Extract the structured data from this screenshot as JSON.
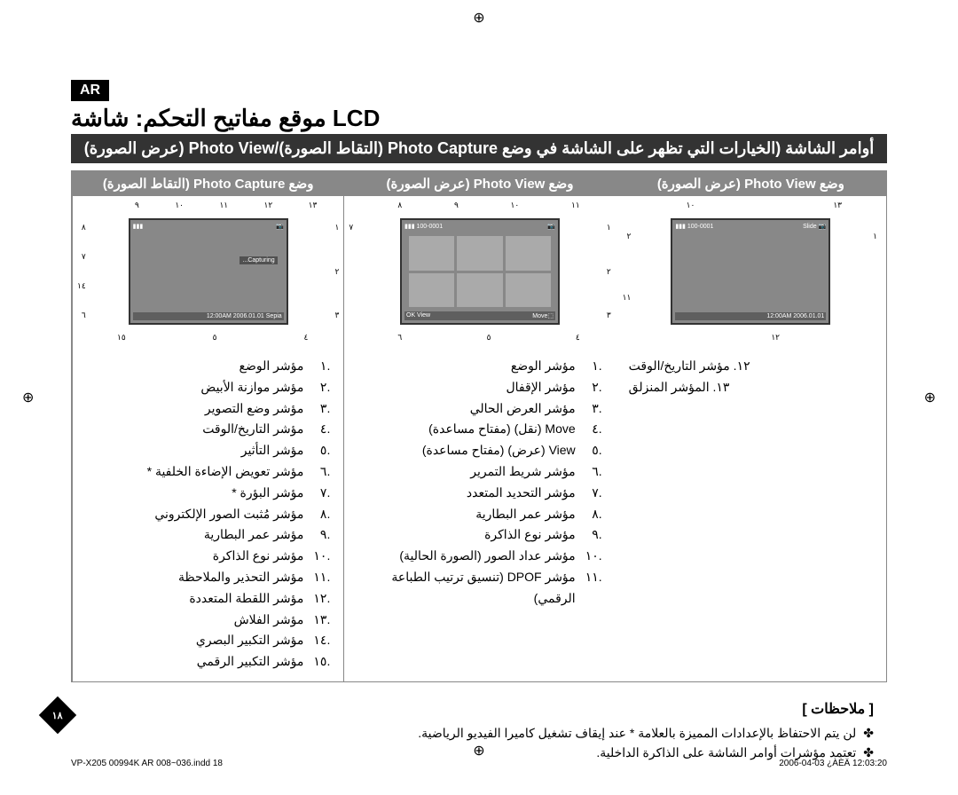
{
  "lang_badge": "AR",
  "main_title": "موقع مفاتيح التحكم: شاشة LCD",
  "banner": "أوامر الشاشة (الخيارات التي تظهر على الشاشة في وضع Photo Capture (التقاط الصورة)/Photo View (عرض الصورة)",
  "columns": [
    {
      "header": "وضع Photo Capture (التقاط الصورة)",
      "screen": {
        "top_left": "📷",
        "top_right": "▮▮▮",
        "bottom": "12:00AM 2006.01.01    Sepia",
        "capturing": "Capturing..."
      },
      "items": [
        "مؤشر الوضع",
        "مؤشر موازنة الأبيض",
        "مؤشر وضع التصوير",
        "مؤشر التاريخ/الوقت",
        "مؤشر التأثير",
        "مؤشر تعويض الإضاءة الخلفية *",
        "مؤشر البؤرة *",
        "مؤشر مُثبت الصور الإلكتروني",
        "مؤشر عمر البطارية",
        "مؤشر نوع الذاكرة",
        "مؤشر التحذير والملاحظة",
        "مؤشر اللقطة المتعددة",
        "مؤشر الفلاش",
        "مؤشر التكبير البصري",
        "مؤشر التكبير الرقمي"
      ]
    },
    {
      "header": "وضع Photo View (عرض الصورة)",
      "screen": {
        "top_left": "📷",
        "top_right": "100-0001 ▮▮▮",
        "bottom_left": "⬚Move",
        "bottom_right": "OK View"
      },
      "items": [
        "مؤشر الوضع",
        "مؤشر الإقفال",
        "مؤشر العرض الحالي",
        "Move (نقل) (مفتاح مساعدة)",
        "View (عرض) (مفتاح مساعدة)",
        "مؤشر شريط التمرير",
        "مؤشر التحديد المتعدد",
        "مؤشر عمر البطارية",
        "مؤشر نوع الذاكرة",
        "مؤشر عداد الصور (الصورة الحالية)",
        "مؤشر DPOF (تنسيق ترتيب الطباعة الرقمي)"
      ]
    },
    {
      "header": "وضع Photo View (عرض الصورة)",
      "screen": {
        "top_left": "📷 Slide",
        "top_right": "100-0001 ▮▮▮",
        "bottom": "12:00AM 2006.01.01"
      },
      "items_left": [
        "١٢. مؤشر التاريخ/الوقت",
        "١٣. المؤشر المنزلق"
      ]
    }
  ],
  "notes_title": "[ ملاحظات ]",
  "notes": [
    "لن يتم الاحتفاظ بالإعدادات المميزة بالعلامة * عند إيقاف تشغيل كاميرا الفيديو الرياضية.",
    "تعتمد مؤشرات أوامر الشاشة على الذاكرة الداخلية."
  ],
  "page_num": "١٨",
  "footer_left": "VP-X205 00994K AR 008~036.indd   18",
  "footer_right": "2006-04-03   ¿ÀÈÄ 12:03:20",
  "arabic_nums": [
    "١",
    "٢",
    "٣",
    "٤",
    "٥",
    "٦",
    "٧",
    "٨",
    "٩",
    "١٠",
    "١١",
    "١٢",
    "١٣",
    "١٤",
    "١٥"
  ],
  "colors": {
    "black": "#000000",
    "white": "#ffffff",
    "header_gray": "#888888",
    "banner_dark": "#333333"
  }
}
